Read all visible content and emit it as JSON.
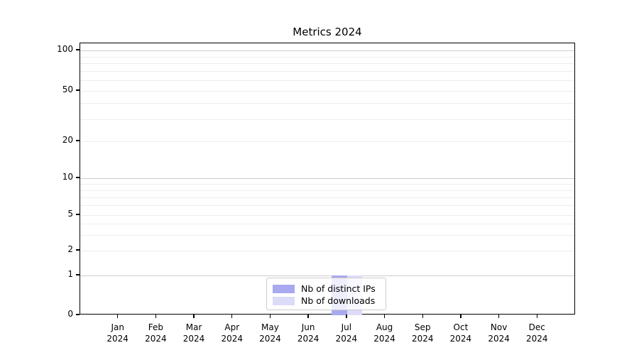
{
  "title": "Metrics 2024",
  "chart_data": {
    "type": "bar",
    "title": "Metrics 2024",
    "categories": [
      "Jan 2024",
      "Feb 2024",
      "Mar 2024",
      "Apr 2024",
      "May 2024",
      "Jun 2024",
      "Jul 2024",
      "Aug 2024",
      "Sep 2024",
      "Oct 2024",
      "Nov 2024",
      "Dec 2024"
    ],
    "series": [
      {
        "name": "Nb of distinct IPs",
        "color": "#a9a9ef",
        "values": [
          0,
          0,
          0,
          0,
          0,
          0,
          1,
          0,
          0,
          0,
          0,
          0
        ]
      },
      {
        "name": "Nb of downloads",
        "color": "#dcdcf8",
        "values": [
          0,
          0,
          0,
          0,
          0,
          0,
          1,
          0,
          0,
          0,
          0,
          0
        ]
      }
    ],
    "yscale": "symlog",
    "ytick_values": [
      0,
      1,
      2,
      5,
      10,
      20,
      50,
      100
    ],
    "ytick_labels": [
      "0",
      "1",
      "2",
      "5",
      "10",
      "20",
      "50",
      "100"
    ],
    "major_grid_values": [
      1,
      10,
      100
    ],
    "minor_grid_values": [
      2,
      3,
      4,
      5,
      6,
      7,
      8,
      9,
      20,
      30,
      40,
      50,
      60,
      70,
      80,
      90
    ],
    "ylim": [
      0,
      115
    ],
    "grid": true,
    "legend_position": "lower center",
    "colors": {
      "major_grid": "#cccccc",
      "minor_grid": "#ededed",
      "spine": "#000000",
      "background": "#ffffff"
    }
  }
}
